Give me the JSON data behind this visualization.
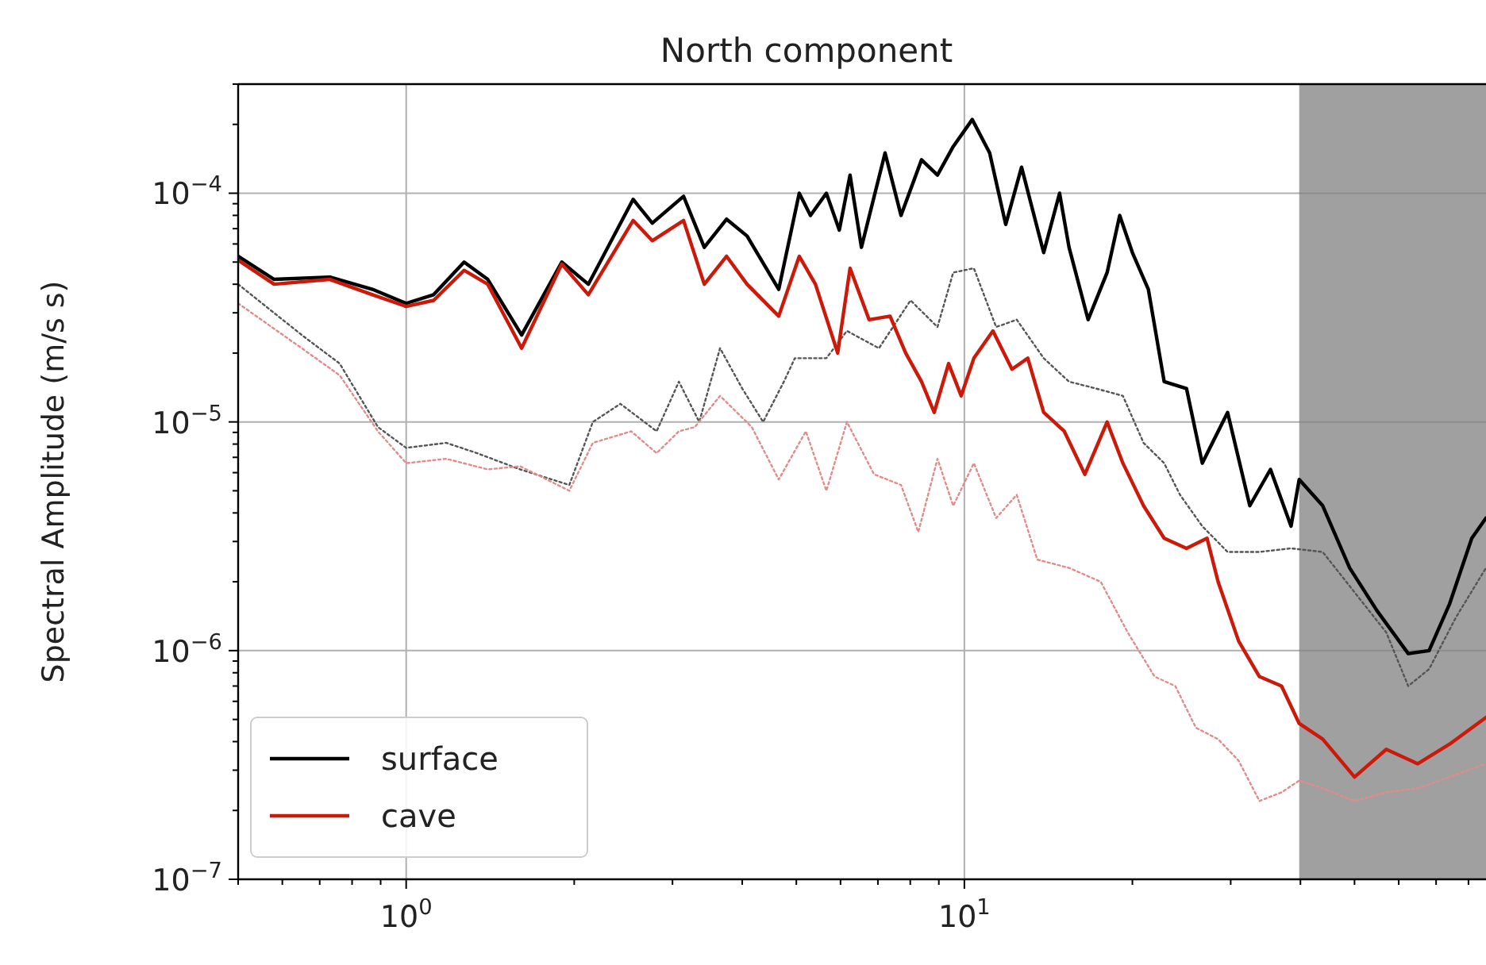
{
  "chart_data": {
    "type": "line",
    "title": "North component",
    "ylabel": "Spectral Amplitude (m/s s)",
    "log": "xy",
    "grid": true,
    "legend": "bottom left",
    "marker": "none",
    "xlim": [
      0.5,
      86
    ],
    "ylim": [
      1e-07,
      0.0003
    ],
    "xticks": [
      {
        "value": 0.5,
        "label": null
      },
      {
        "value": 0.6,
        "label": null
      },
      {
        "value": 0.7,
        "label": null
      },
      {
        "value": 0.8,
        "label": null
      },
      {
        "value": 0.9,
        "label": null
      },
      {
        "value": 1,
        "label": "10$^{0}$"
      },
      {
        "value": 2,
        "label": null
      },
      {
        "value": 3,
        "label": null
      },
      {
        "value": 4,
        "label": null
      },
      {
        "value": 5,
        "label": null
      },
      {
        "value": 6,
        "label": null
      },
      {
        "value": 7,
        "label": null
      },
      {
        "value": 8,
        "label": null
      },
      {
        "value": 9,
        "label": null
      },
      {
        "value": 10,
        "label": "10$^{1}$"
      },
      {
        "value": 20,
        "label": null
      },
      {
        "value": 30,
        "label": null
      },
      {
        "value": 40,
        "label": null
      },
      {
        "value": 50,
        "label": null
      },
      {
        "value": 60,
        "label": null
      },
      {
        "value": 70,
        "label": null
      },
      {
        "value": 80,
        "label": null
      }
    ],
    "yticks": [
      {
        "value": 1e-07,
        "label": "10$^{−7}$"
      },
      {
        "value": 2e-07,
        "label": null
      },
      {
        "value": 3e-07,
        "label": null
      },
      {
        "value": 4e-07,
        "label": null
      },
      {
        "value": 5e-07,
        "label": null
      },
      {
        "value": 6e-07,
        "label": null
      },
      {
        "value": 7e-07,
        "label": null
      },
      {
        "value": 8e-07,
        "label": null
      },
      {
        "value": 9e-07,
        "label": null
      },
      {
        "value": 1e-06,
        "label": "10$^{−6}$"
      },
      {
        "value": 2e-06,
        "label": null
      },
      {
        "value": 3e-06,
        "label": null
      },
      {
        "value": 4e-06,
        "label": null
      },
      {
        "value": 5e-06,
        "label": null
      },
      {
        "value": 6e-06,
        "label": null
      },
      {
        "value": 7e-06,
        "label": null
      },
      {
        "value": 8e-06,
        "label": null
      },
      {
        "value": 9e-06,
        "label": null
      },
      {
        "value": 1e-05,
        "label": "10$^{−5}$"
      },
      {
        "value": 2e-05,
        "label": null
      },
      {
        "value": 3e-05,
        "label": null
      },
      {
        "value": 4e-05,
        "label": null
      },
      {
        "value": 5e-05,
        "label": null
      },
      {
        "value": 6e-05,
        "label": null
      },
      {
        "value": 7e-05,
        "label": null
      },
      {
        "value": 8e-05,
        "label": null
      },
      {
        "value": 9e-05,
        "label": null
      },
      {
        "value": 0.0001,
        "label": "10$^{−4}$"
      },
      {
        "value": 0.0002,
        "label": null
      },
      {
        "value": 0.0003,
        "label": null
      }
    ],
    "bands": [
      {
        "axis": "x",
        "from": 39.8,
        "to": 86,
        "color": "#808080"
      }
    ],
    "series": [
      {
        "color": "#555555",
        "line_style": "dotted",
        "x": [
          0.5,
          0.65,
          0.76,
          0.89,
          1.0,
          1.18,
          1.34,
          1.6,
          1.96,
          2.16,
          2.42,
          2.81,
          3.08,
          3.35,
          3.65,
          4.0,
          4.36,
          4.75,
          4.97,
          5.66,
          6.16,
          7.03,
          8.01,
          8.95,
          9.55,
          10.4,
          11.4,
          12.41,
          13.87,
          15.4,
          17.21,
          19.23,
          20.94,
          22.8,
          24.34,
          26.68,
          29.62,
          33.77,
          38.48,
          43.85,
          50.0,
          57.0,
          62.4,
          68.0,
          76.0,
          86.0
        ],
        "values": [
          4e-05,
          2.4e-05,
          1.8e-05,
          9.5e-06,
          7.7e-06,
          8.1e-06,
          7.3e-06,
          6.2e-06,
          5.3e-06,
          1e-05,
          1.2e-05,
          9.1e-06,
          1.5e-05,
          1e-05,
          2.1e-05,
          1.4e-05,
          1e-05,
          1.5e-05,
          1.9e-05,
          1.9e-05,
          2.5e-05,
          2.1e-05,
          3.4e-05,
          2.6e-05,
          4.5e-05,
          4.7e-05,
          2.6e-05,
          2.8e-05,
          1.9e-05,
          1.5e-05,
          1.4e-05,
          1.3e-05,
          8.1e-06,
          6.6e-06,
          4.8e-06,
          3.5e-06,
          2.7e-06,
          2.7e-06,
          2.8e-06,
          2.7e-06,
          1.8e-06,
          1.2e-06,
          7e-07,
          8.3e-07,
          1.4e-06,
          2.3e-06
        ]
      },
      {
        "color": "#e08c8c",
        "line_style": "dotted",
        "x": [
          0.5,
          0.65,
          0.76,
          0.89,
          1.0,
          1.18,
          1.4,
          1.6,
          1.96,
          2.16,
          2.53,
          2.81,
          3.08,
          3.29,
          3.65,
          4.16,
          4.65,
          5.2,
          5.66,
          6.16,
          6.89,
          7.7,
          8.27,
          8.95,
          9.55,
          10.4,
          11.4,
          12.41,
          13.51,
          15.4,
          17.55,
          19.62,
          21.92,
          23.87,
          25.99,
          28.48,
          31.0,
          33.77,
          37.0,
          39.8,
          43.85,
          50.0,
          57.0,
          64.9,
          74.0,
          86.0
        ],
        "values": [
          3.3e-05,
          2.1e-05,
          1.6e-05,
          9.1e-06,
          6.6e-06,
          6.9e-06,
          6.2e-06,
          6.4e-06,
          5e-06,
          8.1e-06,
          9.1e-06,
          7.3e-06,
          9.1e-06,
          9.5e-06,
          1.3e-05,
          9.5e-06,
          5.6e-06,
          9.1e-06,
          5e-06,
          1e-05,
          5.9e-06,
          5.3e-06,
          3.3e-06,
          6.9e-06,
          4.3e-06,
          6.6e-06,
          3.8e-06,
          4.8e-06,
          2.5e-06,
          2.3e-06,
          2e-06,
          1.2e-06,
          7.7e-07,
          7e-07,
          4.6e-07,
          4.1e-07,
          3.3e-07,
          2.2e-07,
          2.4e-07,
          2.7e-07,
          2.5e-07,
          2.2e-07,
          2.4e-07,
          2.5e-07,
          2.8e-07,
          3.2e-07
        ]
      },
      {
        "name": "surface",
        "color": "#000000",
        "line_style": "solid",
        "x": [
          0.5,
          0.58,
          0.73,
          0.87,
          1.0,
          1.12,
          1.27,
          1.4,
          1.61,
          1.9,
          2.12,
          2.55,
          2.76,
          3.14,
          3.42,
          3.75,
          4.08,
          4.65,
          5.06,
          5.3,
          5.66,
          5.97,
          6.24,
          6.54,
          7.21,
          7.7,
          8.38,
          8.95,
          9.55,
          10.33,
          11.1,
          11.86,
          12.66,
          13.87,
          14.81,
          15.4,
          16.66,
          18.02,
          18.98,
          20.0,
          21.36,
          22.8,
          25.0,
          26.68,
          29.62,
          32.46,
          35.35,
          38.48,
          39.8,
          43.85,
          49.0,
          54.8,
          62.4,
          68.0,
          74.0,
          81.1,
          86.0
        ],
        "values": [
          5.3e-05,
          4.2e-05,
          4.3e-05,
          3.8e-05,
          3.3e-05,
          3.6e-05,
          5e-05,
          4.2e-05,
          2.4e-05,
          5e-05,
          4e-05,
          9.4e-05,
          7.4e-05,
          9.7e-05,
          5.8e-05,
          7.7e-05,
          6.5e-05,
          3.8e-05,
          0.0001,
          8e-05,
          0.0001,
          6.9e-05,
          0.00012,
          5.8e-05,
          0.00015,
          8e-05,
          0.00014,
          0.00012,
          0.00016,
          0.00021,
          0.00015,
          7.3e-05,
          0.00013,
          5.5e-05,
          0.0001,
          5.8e-05,
          2.8e-05,
          4.5e-05,
          8e-05,
          5.5e-05,
          3.8e-05,
          1.5e-05,
          1.4e-05,
          6.6e-06,
          1.1e-05,
          4.3e-06,
          6.2e-06,
          3.5e-06,
          5.6e-06,
          4.3e-06,
          2.3e-06,
          1.5e-06,
          9.7e-07,
          1e-06,
          1.6e-06,
          3.1e-06,
          3.8e-06
        ]
      },
      {
        "name": "cave",
        "color": "#cc1a0a",
        "line_style": "solid",
        "x": [
          0.5,
          0.58,
          0.73,
          0.87,
          1.0,
          1.12,
          1.27,
          1.4,
          1.61,
          1.9,
          2.12,
          2.55,
          2.76,
          3.14,
          3.42,
          3.75,
          4.08,
          4.65,
          5.06,
          5.41,
          5.93,
          6.24,
          6.75,
          7.36,
          7.85,
          8.38,
          8.83,
          9.37,
          9.87,
          10.4,
          11.25,
          12.17,
          12.99,
          13.87,
          15.1,
          16.44,
          18.02,
          19.23,
          20.94,
          22.8,
          25.0,
          27.21,
          28.48,
          31.0,
          33.77,
          37.0,
          39.8,
          43.85,
          50.0,
          57.0,
          64.9,
          74.0,
          86.0
        ],
        "values": [
          5.1e-05,
          4e-05,
          4.2e-05,
          3.6e-05,
          3.2e-05,
          3.4e-05,
          4.6e-05,
          4e-05,
          2.1e-05,
          4.9e-05,
          3.6e-05,
          7.6e-05,
          6.2e-05,
          7.6e-05,
          4e-05,
          5.3e-05,
          4e-05,
          2.9e-05,
          5.3e-05,
          4e-05,
          2e-05,
          4.7e-05,
          2.8e-05,
          2.9e-05,
          2e-05,
          1.5e-05,
          1.1e-05,
          1.8e-05,
          1.3e-05,
          1.9e-05,
          2.5e-05,
          1.7e-05,
          1.9e-05,
          1.1e-05,
          9.1e-06,
          5.9e-06,
          1e-05,
          6.6e-06,
          4.3e-06,
          3.1e-06,
          2.8e-06,
          3.1e-06,
          2e-06,
          1.1e-06,
          7.7e-07,
          7e-07,
          4.8e-07,
          4.1e-07,
          2.8e-07,
          3.7e-07,
          3.2e-07,
          3.9e-07,
          5.1e-07
        ]
      }
    ]
  }
}
